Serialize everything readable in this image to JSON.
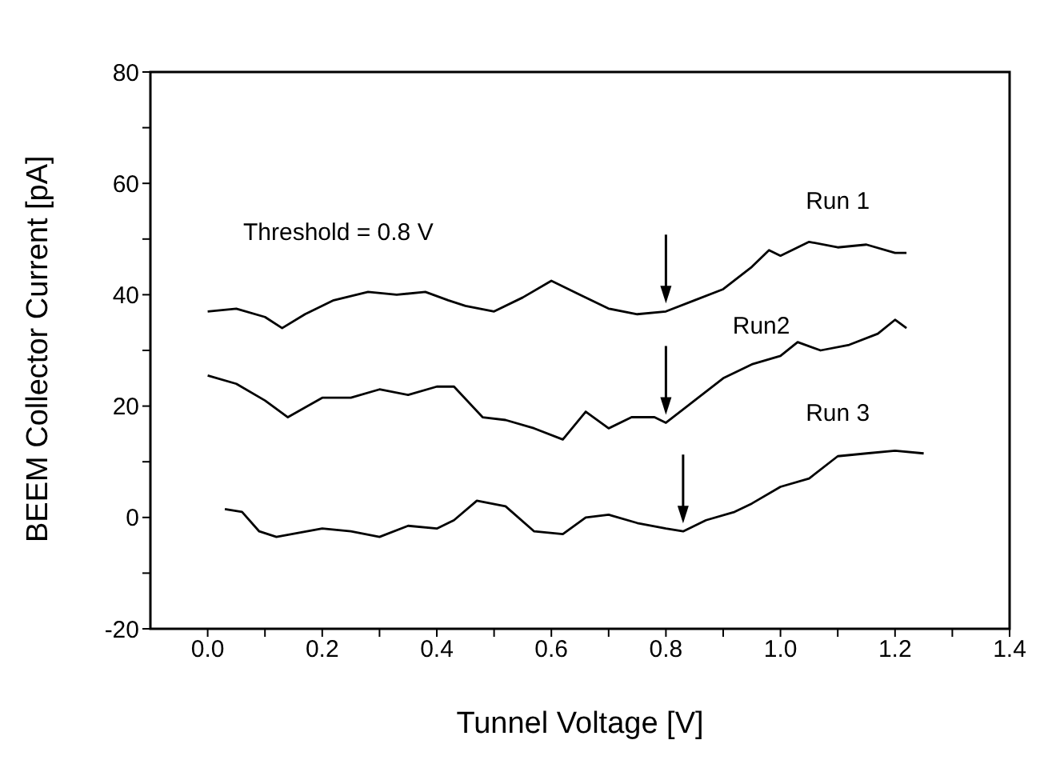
{
  "chart_data": {
    "type": "line",
    "xlabel": "Tunnel Voltage [V]",
    "ylabel": "BEEM Collector Current [pA]",
    "annotations": [
      "Threshold = 0.8 V"
    ],
    "xlim": [
      -0.1,
      1.4
    ],
    "xticks": [
      {
        "value": 0,
        "label": "0.0"
      },
      {
        "value": 0.1,
        "label": null
      },
      {
        "value": 0.2,
        "label": "0.2"
      },
      {
        "value": 0.3,
        "label": null
      },
      {
        "value": 0.4,
        "label": "0.4"
      },
      {
        "value": 0.5,
        "label": null
      },
      {
        "value": 0.6,
        "label": "0.6"
      },
      {
        "value": 0.7,
        "label": null
      },
      {
        "value": 0.8,
        "label": "0.8"
      },
      {
        "value": 0.9,
        "label": null
      },
      {
        "value": 1.0,
        "label": "1.0"
      },
      {
        "value": 1.1,
        "label": null
      },
      {
        "value": 1.2,
        "label": "1.2"
      },
      {
        "value": 1.3,
        "label": null
      },
      {
        "value": 1.4,
        "label": "1.4"
      }
    ],
    "ylim": [
      -20,
      80
    ],
    "yticks": [
      -20,
      {
        "value": -10,
        "label": null
      },
      0,
      {
        "value": 10,
        "label": null
      },
      20,
      {
        "value": 30,
        "label": null
      },
      40,
      {
        "value": 50,
        "label": null
      },
      60,
      {
        "value": 70,
        "label": null
      },
      80
    ],
    "grid": false,
    "legend": false,
    "marker": "none",
    "line_style": "solid",
    "series": [
      {
        "name": "Run 1",
        "color": "#000000",
        "x": [
          0,
          0.05,
          0.1,
          0.13,
          0.17,
          0.22,
          0.28,
          0.33,
          0.38,
          0.42,
          0.45,
          0.5,
          0.55,
          0.6,
          0.65,
          0.7,
          0.75,
          0.8,
          0.85,
          0.9,
          0.95,
          0.98,
          1.0,
          1.05,
          1.1,
          1.15,
          1.2,
          1.22
        ],
        "values": [
          37,
          37.5,
          36,
          34,
          36.5,
          39,
          40.5,
          40,
          40.5,
          39,
          38,
          37,
          39.5,
          42.5,
          40,
          37.5,
          36.5,
          37,
          39,
          41,
          45,
          48,
          47,
          49.5,
          48.5,
          49,
          47.5,
          47.5
        ]
      },
      {
        "name": "Run2",
        "color": "#000000",
        "x": [
          0,
          0.05,
          0.1,
          0.14,
          0.2,
          0.25,
          0.3,
          0.35,
          0.4,
          0.43,
          0.48,
          0.52,
          0.57,
          0.62,
          0.66,
          0.7,
          0.74,
          0.78,
          0.8,
          0.85,
          0.9,
          0.95,
          1.0,
          1.03,
          1.07,
          1.12,
          1.17,
          1.2,
          1.22
        ],
        "values": [
          25.5,
          24,
          21,
          18,
          21.5,
          21.5,
          23,
          22,
          23.5,
          23.5,
          18,
          17.5,
          16,
          14,
          19,
          16,
          18,
          18,
          17,
          21,
          25,
          27.5,
          29,
          31.5,
          30,
          31,
          33,
          35.5,
          34
        ]
      },
      {
        "name": "Run 3",
        "color": "#000000",
        "x": [
          0.03,
          0.06,
          0.09,
          0.12,
          0.2,
          0.25,
          0.3,
          0.35,
          0.4,
          0.43,
          0.47,
          0.52,
          0.57,
          0.62,
          0.66,
          0.7,
          0.75,
          0.8,
          0.83,
          0.87,
          0.92,
          0.95,
          1.0,
          1.05,
          1.1,
          1.15,
          1.2,
          1.25
        ],
        "values": [
          1.5,
          1,
          -2.5,
          -3.5,
          -2,
          -2.5,
          -3.5,
          -1.5,
          -2,
          -0.5,
          3,
          2,
          -2.5,
          -3,
          0,
          0.5,
          -1,
          -2,
          -2.5,
          -0.5,
          1,
          2.5,
          5.5,
          7,
          11,
          11.5,
          12,
          11.5
        ]
      }
    ]
  }
}
